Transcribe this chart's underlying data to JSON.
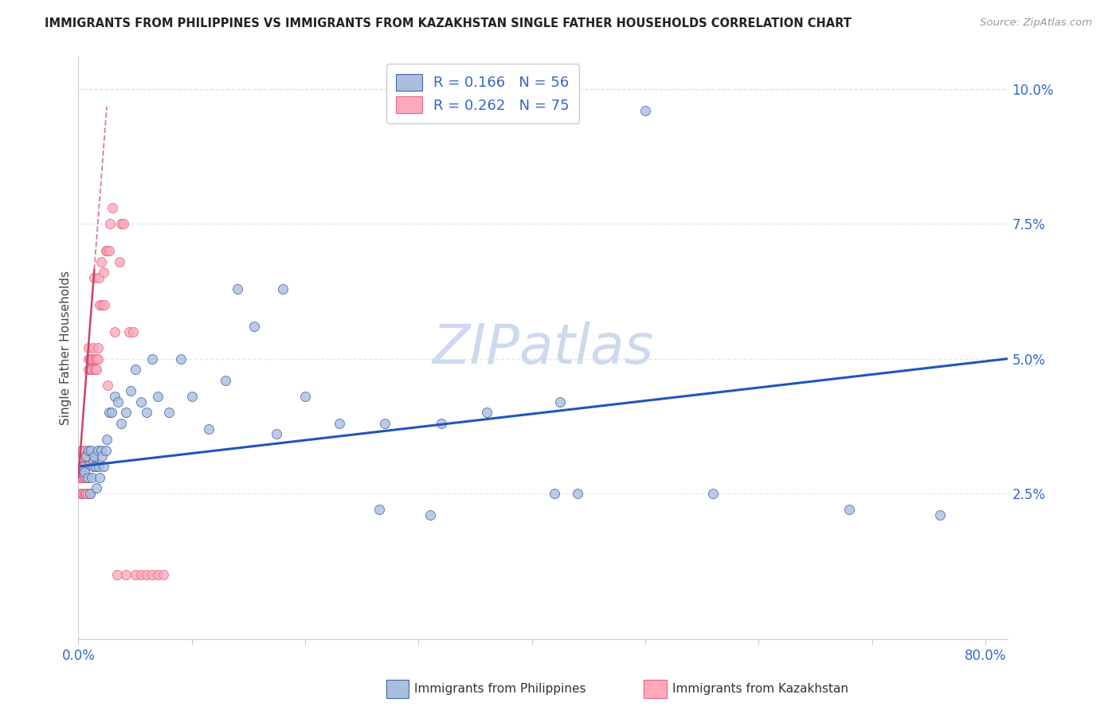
{
  "title": "IMMIGRANTS FROM PHILIPPINES VS IMMIGRANTS FROM KAZAKHSTAN SINGLE FATHER HOUSEHOLDS CORRELATION CHART",
  "source": "Source: ZipAtlas.com",
  "ylabel": "Single Father Households",
  "xlim": [
    0.0,
    0.82
  ],
  "ylim": [
    -0.002,
    0.106
  ],
  "right_ytick_vals": [
    0.025,
    0.05,
    0.075,
    0.1
  ],
  "right_ytick_labels": [
    "2.5%",
    "5.0%",
    "7.5%",
    "10.0%"
  ],
  "blue_face": "#aabfdd",
  "blue_edge": "#4466aa",
  "pink_face": "#ffaabb",
  "pink_edge": "#dd6688",
  "blue_line": "#2255bb",
  "pink_line": "#cc4466",
  "watermark_color": "#ccdaee",
  "axis_color": "#cccccc",
  "text_blue": "#3366cc",
  "grid_color": "#e5e5ee",
  "philippines_x": [
    0.003,
    0.005,
    0.007,
    0.008,
    0.009,
    0.01,
    0.011,
    0.012,
    0.013,
    0.013,
    0.014,
    0.015,
    0.016,
    0.017,
    0.018,
    0.019,
    0.02,
    0.021,
    0.022,
    0.024,
    0.025,
    0.027,
    0.029,
    0.032,
    0.035,
    0.038,
    0.042,
    0.046,
    0.05,
    0.055,
    0.06,
    0.065,
    0.07,
    0.08,
    0.09,
    0.1,
    0.115,
    0.13,
    0.155,
    0.175,
    0.2,
    0.23,
    0.265,
    0.31,
    0.36,
    0.425,
    0.5,
    0.56,
    0.68,
    0.76,
    0.27,
    0.32,
    0.42,
    0.18,
    0.14,
    0.44
  ],
  "philippines_y": [
    0.03,
    0.029,
    0.032,
    0.028,
    0.033,
    0.025,
    0.033,
    0.028,
    0.031,
    0.03,
    0.032,
    0.03,
    0.026,
    0.033,
    0.03,
    0.028,
    0.033,
    0.032,
    0.03,
    0.033,
    0.035,
    0.04,
    0.04,
    0.043,
    0.042,
    0.038,
    0.04,
    0.044,
    0.048,
    0.042,
    0.04,
    0.05,
    0.043,
    0.04,
    0.05,
    0.043,
    0.037,
    0.046,
    0.056,
    0.036,
    0.043,
    0.038,
    0.022,
    0.021,
    0.04,
    0.042,
    0.096,
    0.025,
    0.022,
    0.021,
    0.038,
    0.038,
    0.025,
    0.063,
    0.063,
    0.025
  ],
  "kazakhstan_x": [
    0.001,
    0.001,
    0.002,
    0.002,
    0.002,
    0.002,
    0.003,
    0.003,
    0.003,
    0.003,
    0.003,
    0.004,
    0.004,
    0.004,
    0.004,
    0.005,
    0.005,
    0.005,
    0.005,
    0.005,
    0.006,
    0.006,
    0.006,
    0.007,
    0.007,
    0.007,
    0.008,
    0.008,
    0.008,
    0.009,
    0.009,
    0.009,
    0.01,
    0.01,
    0.01,
    0.011,
    0.011,
    0.012,
    0.012,
    0.013,
    0.013,
    0.014,
    0.014,
    0.015,
    0.015,
    0.016,
    0.016,
    0.017,
    0.017,
    0.018,
    0.019,
    0.02,
    0.021,
    0.022,
    0.023,
    0.024,
    0.025,
    0.026,
    0.027,
    0.028,
    0.03,
    0.032,
    0.034,
    0.036,
    0.038,
    0.04,
    0.042,
    0.045,
    0.048,
    0.05,
    0.055,
    0.06,
    0.065,
    0.07,
    0.075
  ],
  "kazakhstan_y": [
    0.03,
    0.028,
    0.03,
    0.028,
    0.025,
    0.033,
    0.03,
    0.028,
    0.025,
    0.033,
    0.03,
    0.032,
    0.028,
    0.025,
    0.033,
    0.03,
    0.028,
    0.025,
    0.033,
    0.03,
    0.032,
    0.028,
    0.025,
    0.03,
    0.028,
    0.025,
    0.032,
    0.028,
    0.025,
    0.048,
    0.05,
    0.052,
    0.05,
    0.048,
    0.025,
    0.05,
    0.048,
    0.05,
    0.048,
    0.052,
    0.05,
    0.065,
    0.048,
    0.05,
    0.048,
    0.05,
    0.048,
    0.052,
    0.05,
    0.065,
    0.06,
    0.068,
    0.06,
    0.066,
    0.06,
    0.07,
    0.07,
    0.045,
    0.07,
    0.075,
    0.078,
    0.055,
    0.01,
    0.068,
    0.075,
    0.075,
    0.01,
    0.055,
    0.055,
    0.01,
    0.01,
    0.01,
    0.01,
    0.01,
    0.01
  ],
  "kaz_line_x0": 0.0,
  "kaz_line_x1": 0.022,
  "blue_line_x0": 0.0,
  "blue_line_x1": 0.82,
  "blue_line_y0": 0.03,
  "blue_line_y1": 0.05
}
